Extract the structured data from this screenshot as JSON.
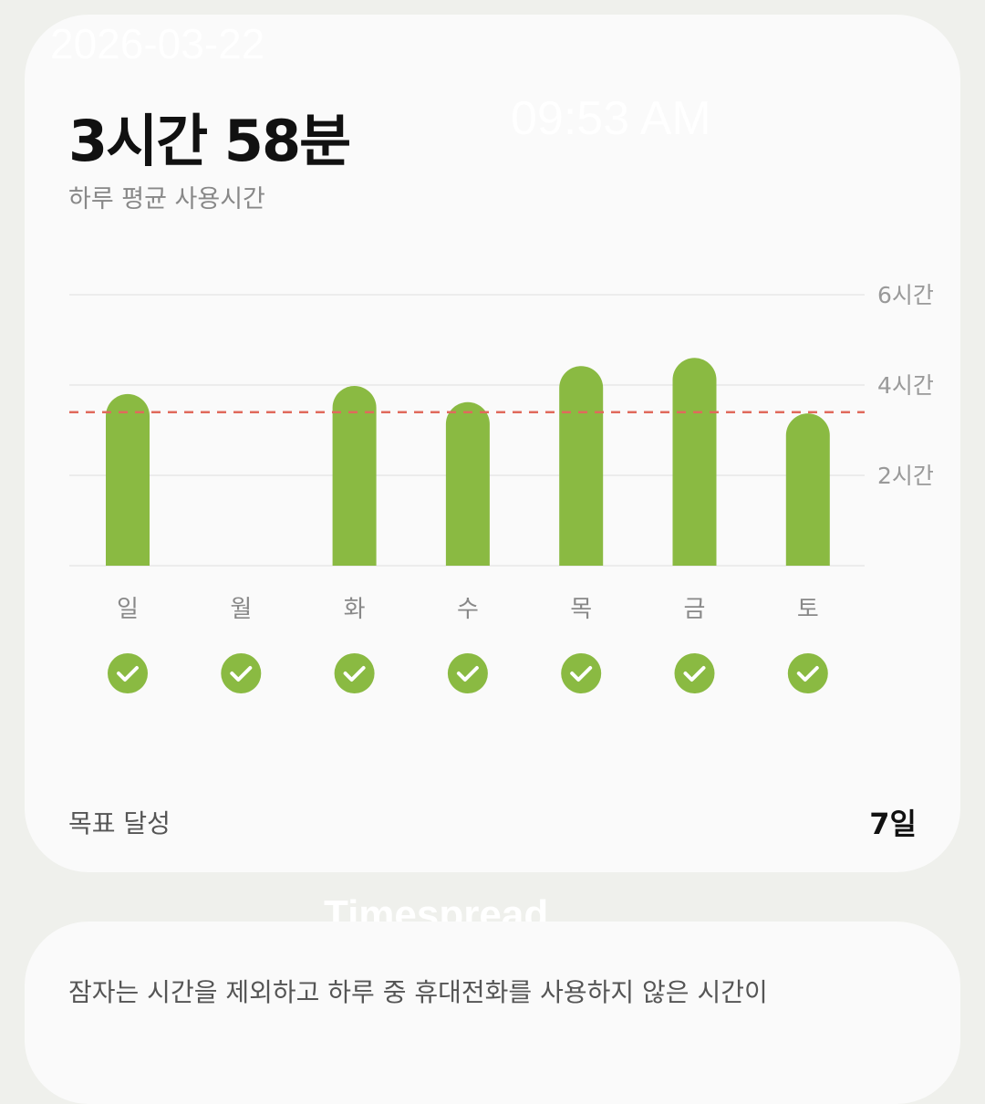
{
  "summary": {
    "value": "3시간 58분",
    "label": "하루 평균 사용시간"
  },
  "watermark": {
    "date": "2026-03-22",
    "time": "09:53 AM",
    "logo": "Timespread"
  },
  "chart_data": {
    "type": "bar",
    "categories": [
      "일",
      "월",
      "화",
      "수",
      "목",
      "금",
      "토"
    ],
    "values": [
      3.8,
      0,
      3.98,
      3.62,
      4.42,
      4.6,
      3.37
    ],
    "unit": "hours",
    "ylim": [
      0,
      6
    ],
    "yticks": [
      {
        "v": 6,
        "label": "6시간"
      },
      {
        "v": 4,
        "label": "4시간"
      },
      {
        "v": 2,
        "label": "2시간"
      }
    ],
    "reference_line": 3.4,
    "goal_met": [
      true,
      true,
      true,
      true,
      true,
      true,
      true
    ],
    "colors": {
      "bar": "#8aba42",
      "line": "#e06a5c",
      "check": "#8aba42"
    }
  },
  "goal": {
    "label": "목표 달성",
    "value": "7일"
  },
  "note": {
    "text": "잠자는 시간을 제외하고 하루 중 휴대전화를 사용하지 않은 시간이"
  }
}
